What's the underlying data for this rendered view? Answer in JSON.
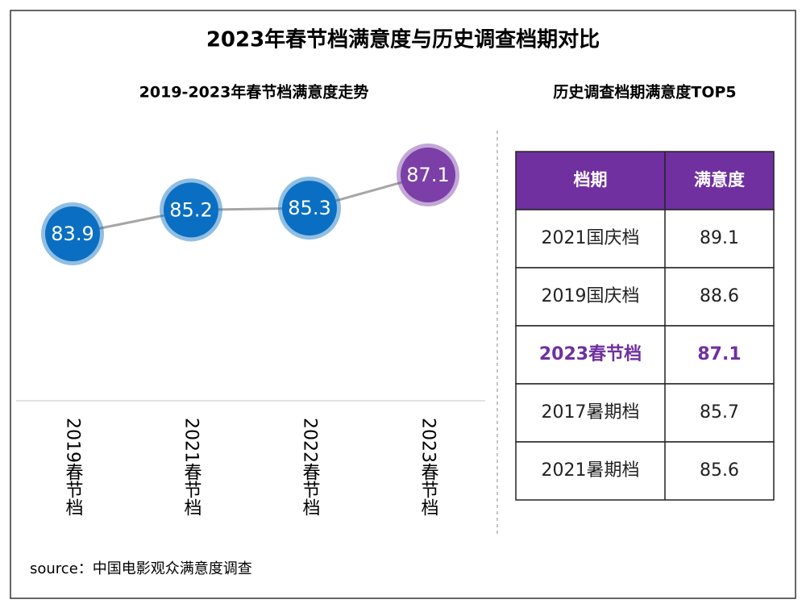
{
  "title": "2023年春节档满意度与历史调查档期对比",
  "chart_data": {
    "type": "line",
    "title": "2019-2023年春节档满意度走势",
    "categories": [
      "2019春节档",
      "2021春节档",
      "2022春节档",
      "2023春节档"
    ],
    "values": [
      83.9,
      85.2,
      85.3,
      87.1
    ],
    "line_color": "#a6a6a6",
    "point_colors": [
      "#0a6fc2",
      "#0a6fc2",
      "#0a6fc2",
      "#7b3fa7"
    ]
  },
  "table": {
    "title": "历史调查档期满意度TOP5",
    "header": [
      "档期",
      "满意度"
    ],
    "header_color": "#7030a0",
    "highlight_row": 2,
    "highlight_color": "#7030a0",
    "rows": [
      [
        "2021国庆档",
        89.1
      ],
      [
        "2019国庆档",
        88.6
      ],
      [
        "2023春节档",
        87.1
      ],
      [
        "2017暑期档",
        85.7
      ],
      [
        "2021暑期档",
        85.6
      ]
    ]
  },
  "source": "source：中国电影观众满意度调查"
}
